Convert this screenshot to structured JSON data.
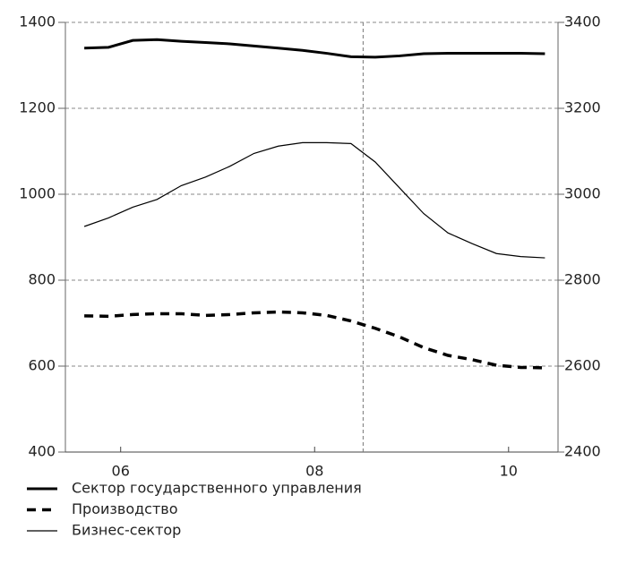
{
  "chart_data": {
    "type": "line",
    "x": [
      2005.625,
      2005.875,
      2006.125,
      2006.375,
      2006.625,
      2006.875,
      2007.125,
      2007.375,
      2007.625,
      2007.875,
      2008.125,
      2008.375,
      2008.625,
      2008.875,
      2009.125,
      2009.375,
      2009.625,
      2009.875,
      2010.125,
      2010.375
    ],
    "series": [
      {
        "name": "Сектор государственного управления",
        "color": "#000000",
        "style": "thick",
        "values": [
          1340,
          1342,
          1358,
          1360,
          1356,
          1353,
          1350,
          1345,
          1340,
          1335,
          1328,
          1320,
          1319,
          1322,
          1327,
          1328,
          1328,
          1328,
          1328,
          1327
        ]
      },
      {
        "name": "Производство",
        "color": "#000000",
        "style": "dashed",
        "values": [
          717,
          716,
          720,
          722,
          722,
          718,
          720,
          724,
          726,
          724,
          718,
          705,
          688,
          668,
          643,
          625,
          615,
          602,
          597,
          596
        ]
      },
      {
        "name": "Бизнес-сектор",
        "color": "#000000",
        "style": "thin",
        "values": [
          925,
          945,
          970,
          988,
          1020,
          1040,
          1065,
          1095,
          1112,
          1120,
          1120,
          1118,
          1075,
          1015,
          955,
          910,
          885,
          862,
          855,
          852
        ]
      }
    ],
    "xlim": [
      2005.43,
      2010.51
    ],
    "xticks": [
      {
        "value": 2006,
        "label": "06"
      },
      {
        "value": 2008,
        "label": "08"
      },
      {
        "value": 2010,
        "label": "10"
      }
    ],
    "ylim": [
      400,
      1400
    ],
    "yticks": [
      400,
      600,
      800,
      1000,
      1200,
      1400
    ],
    "y2lim": [
      2400,
      3400
    ],
    "y2ticks": [
      2400,
      2600,
      2800,
      3000,
      3200,
      3400
    ],
    "vline_x": 2008.5,
    "grid": true
  }
}
